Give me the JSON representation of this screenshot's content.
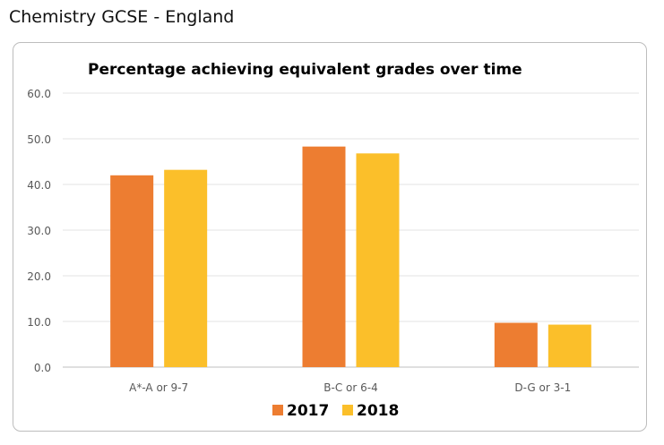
{
  "page": {
    "title": "Chemistry GCSE - England"
  },
  "chart_data": {
    "type": "bar",
    "title": "Percentage achieving equivalent grades over time",
    "xlabel": "",
    "ylabel": "",
    "categories": [
      "A*-A or 9-7",
      "B-C or 6-4",
      "D-G or 3-1"
    ],
    "series": [
      {
        "name": "2017",
        "color": "#ED7D31",
        "values": [
          42.0,
          48.3,
          9.7
        ]
      },
      {
        "name": "2018",
        "color": "#FBBF2A",
        "values": [
          43.2,
          46.8,
          9.3
        ]
      }
    ],
    "ylim": [
      0,
      60
    ],
    "yticks": [
      "0.0",
      "10.0",
      "20.0",
      "30.0",
      "40.0",
      "50.0",
      "60.0"
    ],
    "grid": true,
    "legend_position": "bottom"
  }
}
